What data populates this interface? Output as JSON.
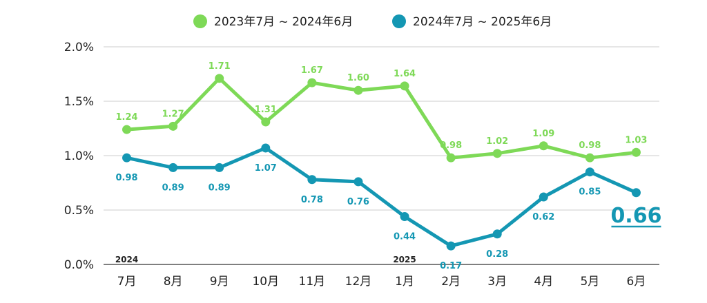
{
  "chart_data": {
    "type": "line",
    "title": "",
    "xlabel": "",
    "ylabel": "",
    "categories": [
      "7月",
      "8月",
      "9月",
      "10月",
      "11月",
      "12月",
      "1月",
      "2月",
      "3月",
      "4月",
      "5月",
      "6月"
    ],
    "y_ticks": [
      "0.0%",
      "0.5%",
      "1.0%",
      "1.5%",
      "2.0%"
    ],
    "ylim": [
      0,
      2.0
    ],
    "grid": true,
    "legend": "top-center",
    "year_labels": [
      {
        "text": "2024",
        "category": "7月"
      },
      {
        "text": "2025",
        "category": "1月"
      }
    ],
    "series": [
      {
        "name": "2023年7月 ~ 2024年6月",
        "color": "#7ed957",
        "values": [
          1.24,
          1.27,
          1.71,
          1.31,
          1.67,
          1.6,
          1.64,
          0.98,
          1.02,
          1.09,
          0.98,
          1.03
        ],
        "labels": [
          "1.24",
          "1.27",
          "1.71",
          "1.31",
          "1.67",
          "1.60",
          "1.64",
          "0.98",
          "1.02",
          "1.09",
          "0.98",
          "1.03"
        ]
      },
      {
        "name": "2024年7月 ~ 2025年6月",
        "color": "#1497b3",
        "values": [
          0.98,
          0.89,
          0.89,
          1.07,
          0.78,
          0.76,
          0.44,
          0.17,
          0.28,
          0.62,
          0.85,
          0.66
        ],
        "labels": [
          "0.98",
          "0.89",
          "0.89",
          "1.07",
          "0.78",
          "0.76",
          "0.44",
          "0.17",
          "0.28",
          "0.62",
          "0.85",
          ""
        ]
      }
    ],
    "highlight": {
      "text": "0.66",
      "series_index": 1,
      "point_index": 11,
      "color": "#1497b3"
    }
  }
}
